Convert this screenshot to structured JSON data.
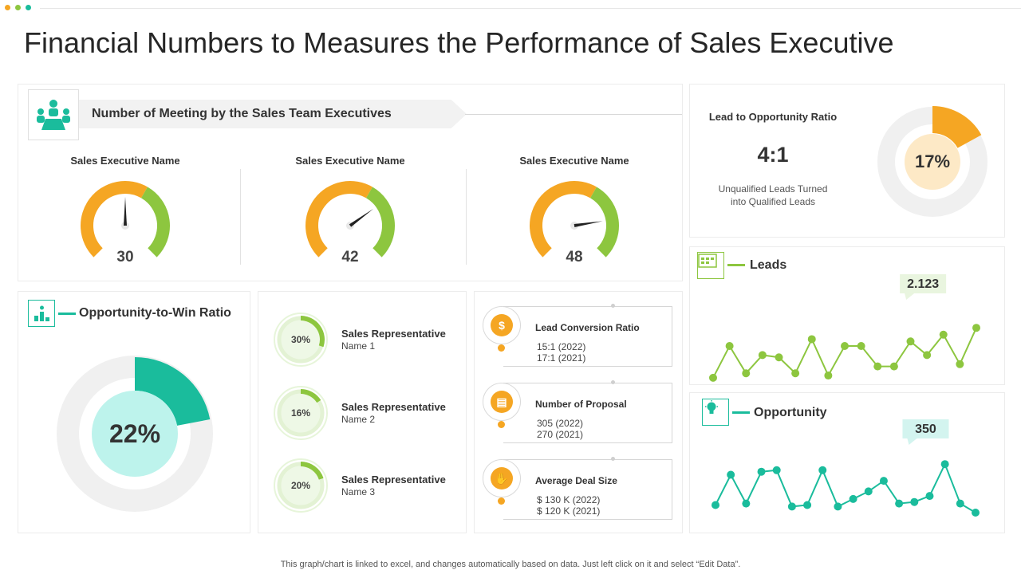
{
  "colors": {
    "orange": "#f5a623",
    "green": "#8dc63f",
    "teal": "#1abc9c",
    "teal_light": "#bdf3ec",
    "gray_ring": "#f0f0f0",
    "peach": "#fde9c6"
  },
  "title": "Financial Numbers to Measures the Performance of Sales Executive",
  "meetings": {
    "header": "Number of Meeting by the Sales Team Executives",
    "icon": "team-meeting-icon",
    "gauges": [
      {
        "name": "Sales Executive Name",
        "value": 30
      },
      {
        "name": "Sales Executive Name",
        "value": 42
      },
      {
        "name": "Sales Executive Name",
        "value": 48
      }
    ]
  },
  "lead_opportunity": {
    "label": "Lead to Opportunity  Ratio",
    "ratio": "4:1",
    "desc_line1": "Unqualified  Leads Turned",
    "desc_line2": "into Qualified Leads",
    "percent_label": "17%",
    "percent": 17
  },
  "win_ratio": {
    "title": "Opportunity-to-Win Ratio",
    "icon": "podium-chart-icon",
    "percent_label": "22%",
    "percent": 22
  },
  "representatives": [
    {
      "line1": "Sales Representative",
      "line2": "Name  1",
      "percent_label": "30%",
      "percent": 30
    },
    {
      "line1": "Sales Representative",
      "line2": "Name  2",
      "percent_label": "16%",
      "percent": 16
    },
    {
      "line1": "Sales Representative",
      "line2": "Name  3",
      "percent_label": "20%",
      "percent": 20
    }
  ],
  "kpis": [
    {
      "title": "Lead Conversion  Ratio",
      "v1": "15:1 (2022)",
      "v2": "17:1 (2021)",
      "icon": "dollar-cycle-icon",
      "glyph": "$"
    },
    {
      "title": "Number of Proposal",
      "v1": "305 (2022)",
      "v2": "270 (2021)",
      "icon": "proposal-document-icon",
      "glyph": "▤"
    },
    {
      "title": "Average Deal Size",
      "v1": "$ 130 K (2022)",
      "v2": "$ 120 K (2021)",
      "icon": "handshake-icon",
      "glyph": "✋"
    }
  ],
  "leads": {
    "title": "Leads",
    "callout": "2.123",
    "icon": "leads-board-icon"
  },
  "opportunity": {
    "title": "Opportunity",
    "callout": "350",
    "icon": "lightbulb-icon"
  },
  "chart_data": [
    {
      "type": "line",
      "title": "Leads",
      "x": [
        1,
        2,
        3,
        4,
        5,
        6,
        7,
        8,
        9,
        10,
        11,
        12,
        13,
        14,
        15,
        16,
        17
      ],
      "values": [
        0.6,
        2.0,
        0.8,
        1.6,
        1.5,
        0.8,
        2.3,
        0.7,
        2.0,
        2.0,
        1.1,
        1.1,
        2.2,
        1.6,
        2.5,
        1.2,
        2.8
      ],
      "ylim": [
        0,
        4
      ]
    },
    {
      "type": "line",
      "title": "Opportunity",
      "x": [
        1,
        2,
        3,
        4,
        5,
        6,
        7,
        8,
        9,
        10,
        11,
        12,
        13,
        14,
        15,
        16,
        17,
        18
      ],
      "values": [
        0.5,
        2.5,
        0.6,
        2.7,
        2.8,
        0.4,
        0.5,
        2.8,
        0.4,
        0.9,
        1.4,
        2.1,
        0.6,
        0.7,
        1.1,
        3.2,
        0.6,
        0.0
      ],
      "ylim": [
        0,
        4
      ]
    }
  ],
  "footer": "This graph/chart is linked to excel,  and changes automatically based on data. Just left click on it and select “Edit Data”."
}
